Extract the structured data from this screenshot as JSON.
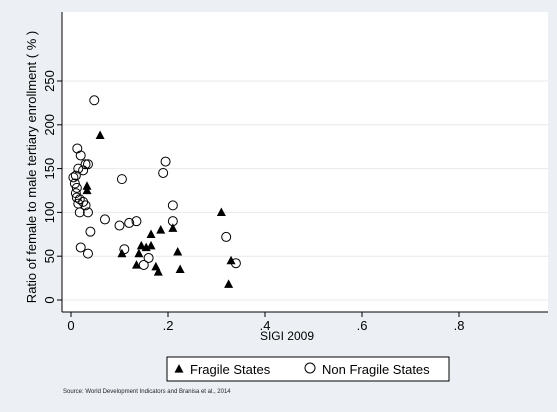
{
  "chart_data": {
    "type": "scatter",
    "xlabel": "SIGI 2009",
    "ylabel": "Ratio of female to male tertiary enrollment ( % )",
    "xlim": [
      0,
      1
    ],
    "ylim": [
      0,
      260
    ],
    "x_ticks": [
      0,
      0.2,
      0.4,
      0.6,
      0.8
    ],
    "x_tick_labels": [
      "0",
      ".2",
      ".4",
      ".6",
      ".8"
    ],
    "y_ticks": [
      0,
      50,
      100,
      150,
      200,
      250
    ],
    "y_tick_labels": [
      "0",
      "50",
      "100",
      "150",
      "200",
      "250"
    ],
    "grid": "horizontal",
    "legend_position": "bottom",
    "source": "Source: World Development Indicators and Branisa et al., 2014",
    "series": [
      {
        "name": "Fragile States",
        "marker": "filled-triangle",
        "points": [
          [
            0.06,
            188
          ],
          [
            0.033,
            130
          ],
          [
            0.033,
            125
          ],
          [
            0.105,
            53
          ],
          [
            0.135,
            40
          ],
          [
            0.14,
            53
          ],
          [
            0.145,
            62
          ],
          [
            0.155,
            60
          ],
          [
            0.165,
            62
          ],
          [
            0.165,
            75
          ],
          [
            0.175,
            38
          ],
          [
            0.18,
            32
          ],
          [
            0.185,
            80
          ],
          [
            0.21,
            82
          ],
          [
            0.22,
            55
          ],
          [
            0.225,
            35
          ],
          [
            0.31,
            100
          ],
          [
            0.325,
            18
          ],
          [
            0.33,
            45
          ]
        ]
      },
      {
        "name": "Non Fragile States",
        "marker": "hollow-circle",
        "points": [
          [
            0.048,
            228
          ],
          [
            0.013,
            173
          ],
          [
            0.02,
            165
          ],
          [
            0.03,
            155
          ],
          [
            0.035,
            155
          ],
          [
            0.015,
            150
          ],
          [
            0.025,
            148
          ],
          [
            0.01,
            142
          ],
          [
            0.005,
            140
          ],
          [
            0.008,
            133
          ],
          [
            0.012,
            128
          ],
          [
            0.01,
            122
          ],
          [
            0.012,
            117
          ],
          [
            0.018,
            115
          ],
          [
            0.025,
            112
          ],
          [
            0.03,
            108
          ],
          [
            0.015,
            110
          ],
          [
            0.018,
            100
          ],
          [
            0.035,
            100
          ],
          [
            0.04,
            78
          ],
          [
            0.07,
            92
          ],
          [
            0.1,
            85
          ],
          [
            0.12,
            88
          ],
          [
            0.135,
            90
          ],
          [
            0.105,
            138
          ],
          [
            0.19,
            145
          ],
          [
            0.195,
            158
          ],
          [
            0.21,
            108
          ],
          [
            0.21,
            90
          ],
          [
            0.02,
            60
          ],
          [
            0.035,
            53
          ],
          [
            0.11,
            58
          ],
          [
            0.16,
            48
          ],
          [
            0.15,
            40
          ],
          [
            0.32,
            72
          ],
          [
            0.34,
            42
          ]
        ]
      }
    ]
  }
}
